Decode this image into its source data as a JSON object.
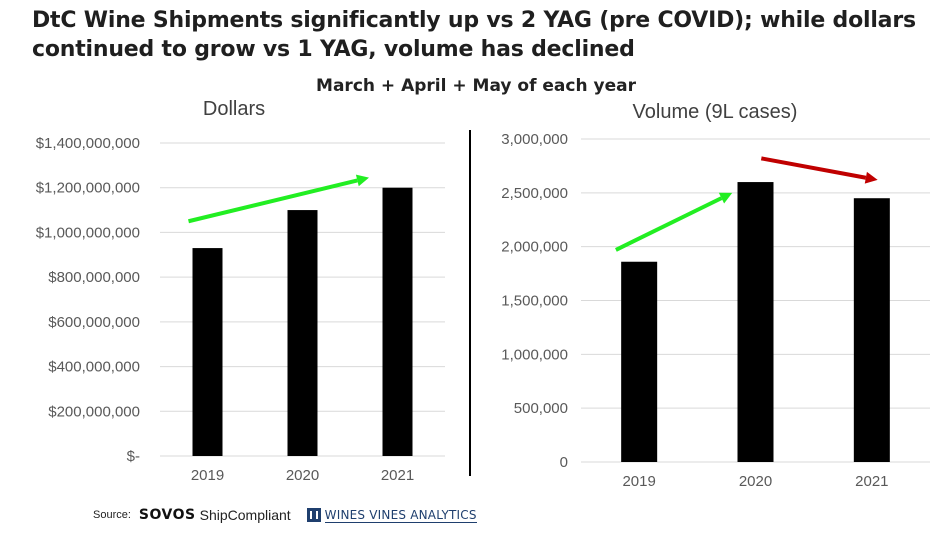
{
  "headline": "DtC Wine Shipments significantly up vs 2 YAG (pre COVID); while dollars continued to grow vs 1 YAG, volume has declined",
  "subhead": "March + April + May of each year",
  "chart_data": [
    {
      "type": "bar",
      "title": "Dollars",
      "categories": [
        "2019",
        "2020",
        "2021"
      ],
      "values": [
        930000000,
        1100000000,
        1200000000
      ],
      "ylim": [
        0,
        1400000000
      ],
      "yticks": [
        0,
        200000000,
        400000000,
        600000000,
        800000000,
        1000000000,
        1200000000,
        1400000000
      ],
      "ytick_labels": [
        "$-",
        "$200,000,000",
        "$400,000,000",
        "$600,000,000",
        "$800,000,000",
        "$1,000,000,000",
        "$1,200,000,000",
        "$1,400,000,000"
      ],
      "grid": true,
      "bar_color": "#000000",
      "annotations": [
        {
          "kind": "arrow",
          "color": "#22ee22",
          "from": {
            "x": 0.3,
            "y": 1050000000
          },
          "to": {
            "x": 2.2,
            "y": 1245000000
          }
        }
      ]
    },
    {
      "type": "bar",
      "title": "Volume (9L cases)",
      "categories": [
        "2019",
        "2020",
        "2021"
      ],
      "values": [
        1860000,
        2600000,
        2450000
      ],
      "ylim": [
        0,
        3000000
      ],
      "yticks": [
        0,
        500000,
        1000000,
        1500000,
        2000000,
        2500000,
        3000000
      ],
      "ytick_labels": [
        "0",
        "500,000",
        "1,000,000",
        "1,500,000",
        "2,000,000",
        "2,500,000",
        "3,000,000"
      ],
      "grid": true,
      "bar_color": "#000000",
      "annotations": [
        {
          "kind": "arrow",
          "color": "#22ee22",
          "from": {
            "x": 0.3,
            "y": 1970000
          },
          "to": {
            "x": 1.3,
            "y": 2500000
          }
        },
        {
          "kind": "arrow",
          "color": "#c00000",
          "from": {
            "x": 1.55,
            "y": 2820000
          },
          "to": {
            "x": 2.55,
            "y": 2620000
          }
        }
      ]
    }
  ],
  "source": {
    "label": "Source:",
    "logos": {
      "sovos": "SOVOS",
      "shipcompliant": "ShipCompliant",
      "wva": "WINES VINES ANALYTICS"
    }
  }
}
